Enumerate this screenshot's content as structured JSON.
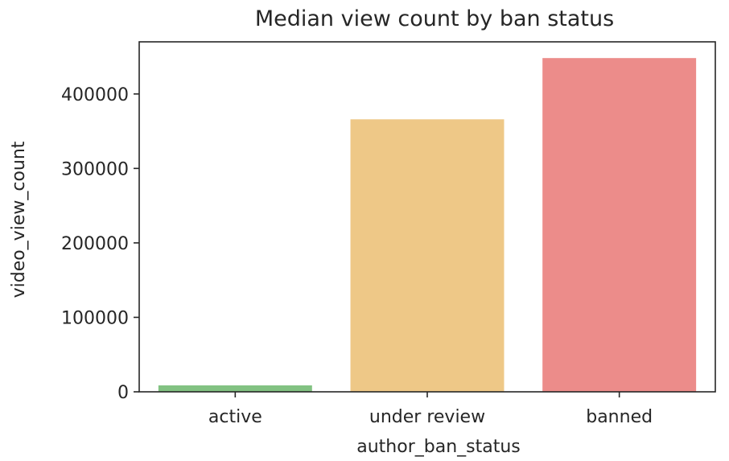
{
  "chart_data": {
    "type": "bar",
    "title": "Median view count by ban status",
    "xlabel": "author_ban_status",
    "ylabel": "video_view_count",
    "categories": [
      "active",
      "under review",
      "banned"
    ],
    "values": [
      8616,
      365968,
      448201
    ],
    "colors": [
      "#82c282",
      "#eec887",
      "#ec8c8a"
    ],
    "ylim": [
      0,
      470000
    ],
    "yticks": [
      0,
      100000,
      200000,
      300000,
      400000
    ],
    "grid": false,
    "legend": "none"
  }
}
